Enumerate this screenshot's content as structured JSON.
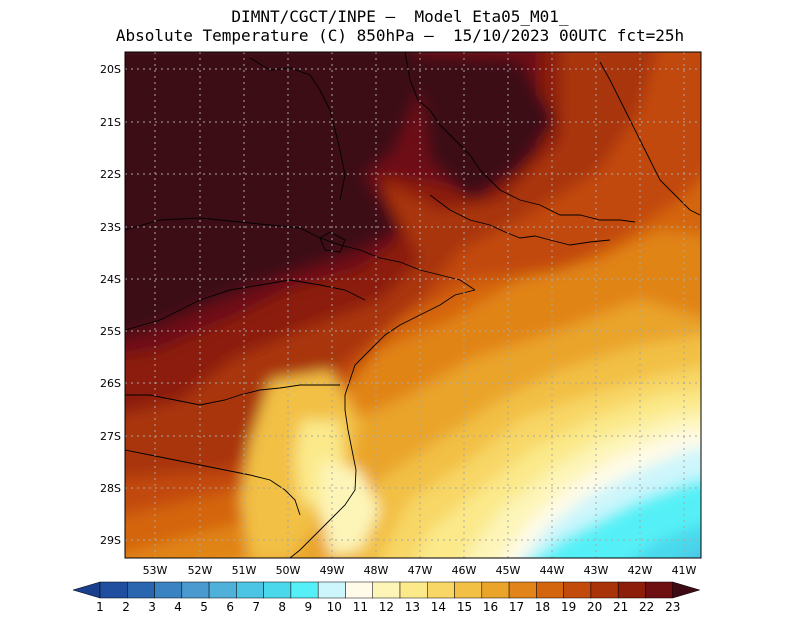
{
  "title_line1": "DIMNT/CGCT/INPE –  Model Eta05_M01_",
  "title_line2": "Absolute Temperature (C) 850hPa –  15/10/2023 00UTC fct=25h",
  "lat_labels": [
    "20S",
    "21S",
    "22S",
    "23S",
    "24S",
    "25S",
    "26S",
    "27S",
    "28S",
    "29S"
  ],
  "lon_labels": [
    "53W",
    "52W",
    "51W",
    "50W",
    "49W",
    "48W",
    "47W",
    "46W",
    "45W",
    "44W",
    "43W",
    "42W",
    "41W"
  ],
  "colorbar": {
    "labels": [
      "1",
      "2",
      "3",
      "4",
      "5",
      "6",
      "7",
      "8",
      "9",
      "10",
      "11",
      "12",
      "13",
      "14",
      "15",
      "16",
      "17",
      "18",
      "19",
      "20",
      "21",
      "22",
      "23"
    ],
    "colors": [
      "#1a3f8c",
      "#1f4f9e",
      "#2a66b0",
      "#3a82c2",
      "#4a99cf",
      "#4fb0da",
      "#4cc4e3",
      "#4ad8ec",
      "#55f0f7",
      "#ccf6fc",
      "#fffbe8",
      "#fdf5b8",
      "#fbe98a",
      "#f8d766",
      "#f2c045",
      "#eaa42a",
      "#e18419",
      "#d4650f",
      "#c24a0a",
      "#a93408",
      "#8c1e0a",
      "#6e0f12",
      "#3e0a14"
    ]
  }
}
